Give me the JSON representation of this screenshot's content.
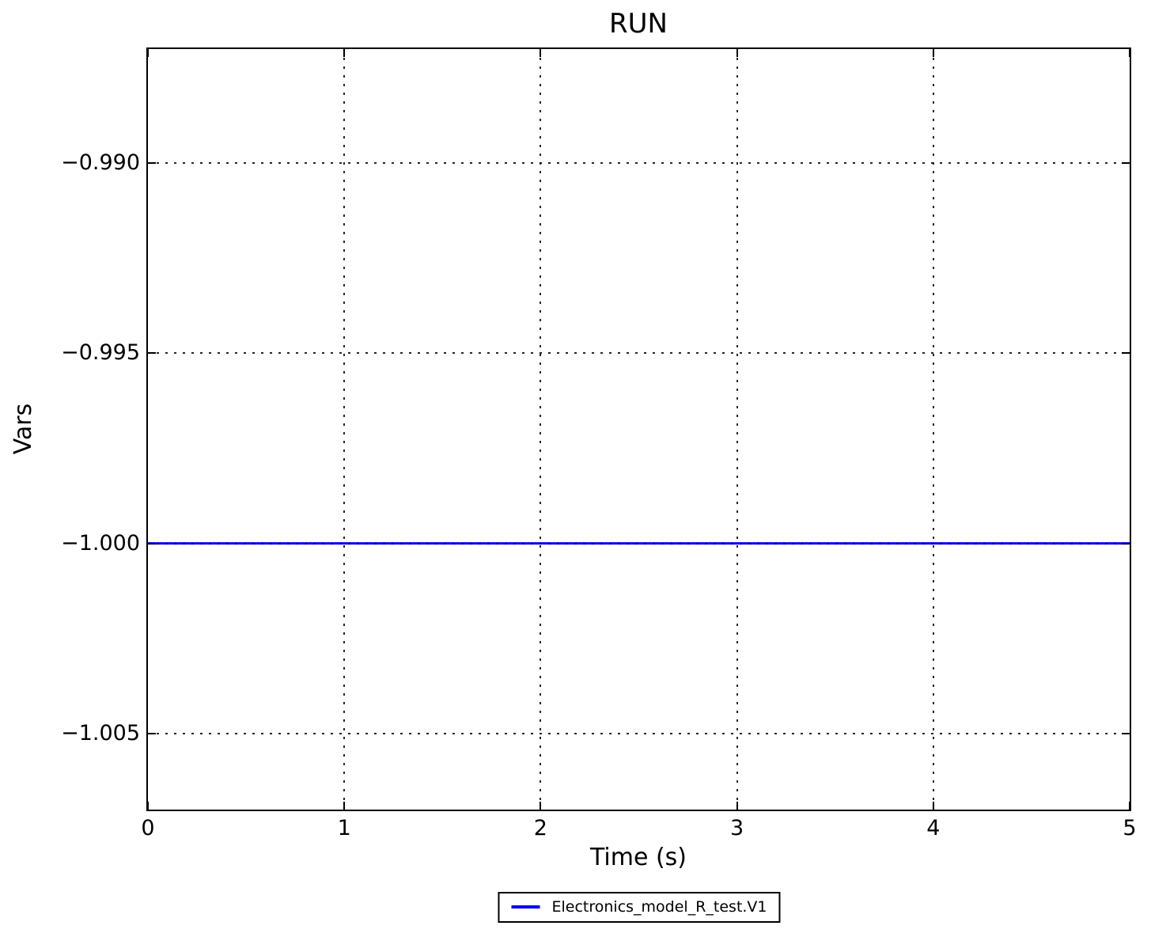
{
  "title": "RUN",
  "colors": {
    "background": "#ffffff",
    "axis": "#000000",
    "grid": "#000000",
    "series_line": "#0000ff"
  },
  "legend": {
    "entries": [
      {
        "label": "Electronics_model_R_test.V1",
        "color": "#0000ff"
      }
    ],
    "position": "below-axes-center",
    "border": "#000000"
  },
  "chart_data": {
    "type": "line",
    "title": "RUN",
    "xlabel": "Time (s)",
    "ylabel": "Vars",
    "xlim": [
      0,
      5
    ],
    "ylim": [
      -1.007,
      -0.987
    ],
    "xticks": [
      0,
      1,
      2,
      3,
      4,
      5
    ],
    "xtick_labels": [
      "0",
      "1",
      "2",
      "3",
      "4",
      "5"
    ],
    "yticks": [
      -0.99,
      -0.995,
      -1.0,
      -1.005
    ],
    "ytick_labels": [
      "−0.990",
      "−0.995",
      "−1.000",
      "−1.005"
    ],
    "grid": true,
    "grid_style": "dotted",
    "legend_position": "lower center outside",
    "series": [
      {
        "name": "Electronics_model_R_test.V1",
        "color": "#0000ff",
        "x": [
          0,
          5
        ],
        "y": [
          -1.0,
          -1.0
        ]
      }
    ]
  }
}
